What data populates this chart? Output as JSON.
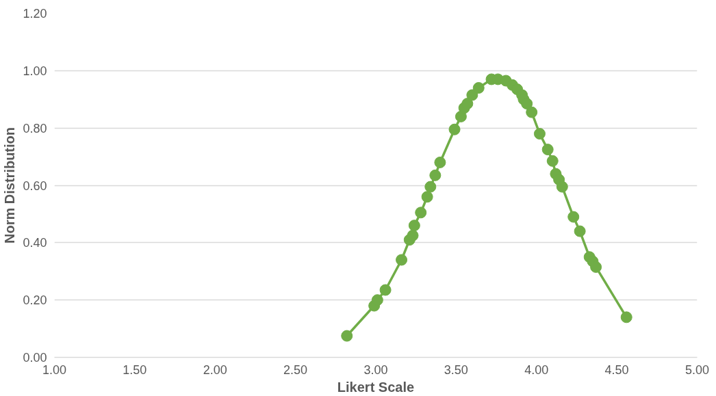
{
  "chart_data": {
    "type": "line",
    "xlabel": "Likert Scale",
    "ylabel": "Norm Distribution",
    "x": [
      2.82,
      2.99,
      3.01,
      3.06,
      3.16,
      3.21,
      3.23,
      3.24,
      3.28,
      3.32,
      3.34,
      3.37,
      3.4,
      3.49,
      3.53,
      3.55,
      3.57,
      3.6,
      3.64,
      3.72,
      3.76,
      3.81,
      3.85,
      3.88,
      3.91,
      3.92,
      3.94,
      3.97,
      4.02,
      4.07,
      4.1,
      4.12,
      4.14,
      4.16,
      4.23,
      4.27,
      4.33,
      4.35,
      4.37,
      4.56
    ],
    "series": [
      {
        "color": "#70ad47",
        "values": [
          0.075,
          0.18,
          0.2,
          0.235,
          0.34,
          0.41,
          0.425,
          0.46,
          0.505,
          0.56,
          0.595,
          0.635,
          0.68,
          0.795,
          0.84,
          0.87,
          0.885,
          0.915,
          0.94,
          0.97,
          0.97,
          0.965,
          0.95,
          0.935,
          0.915,
          0.9,
          0.885,
          0.855,
          0.78,
          0.725,
          0.685,
          0.64,
          0.62,
          0.595,
          0.49,
          0.44,
          0.35,
          0.335,
          0.315,
          0.14
        ]
      }
    ],
    "xlim": [
      1.0,
      5.0
    ],
    "ylim": [
      0.0,
      1.2
    ],
    "xticks": [
      {
        "value": 1.0,
        "label": "1.00"
      },
      {
        "value": 1.5,
        "label": "1.50"
      },
      {
        "value": 2.0,
        "label": "2.00"
      },
      {
        "value": 2.5,
        "label": "2.50"
      },
      {
        "value": 3.0,
        "label": "3.00"
      },
      {
        "value": 3.5,
        "label": "3.50"
      },
      {
        "value": 4.0,
        "label": "4.00"
      },
      {
        "value": 4.5,
        "label": "4.50"
      },
      {
        "value": 5.0,
        "label": "5.00"
      }
    ],
    "yticks": [
      {
        "value": 0.0,
        "label": "0.00"
      },
      {
        "value": 0.2,
        "label": "0.20"
      },
      {
        "value": 0.4,
        "label": "0.40"
      },
      {
        "value": 0.6,
        "label": "0.60"
      },
      {
        "value": 0.8,
        "label": "0.80"
      },
      {
        "value": 1.0,
        "label": "1.00"
      },
      {
        "value": 1.2,
        "label": "1.20"
      }
    ],
    "grid": "y",
    "marker": "circle",
    "line_style": "solid"
  }
}
